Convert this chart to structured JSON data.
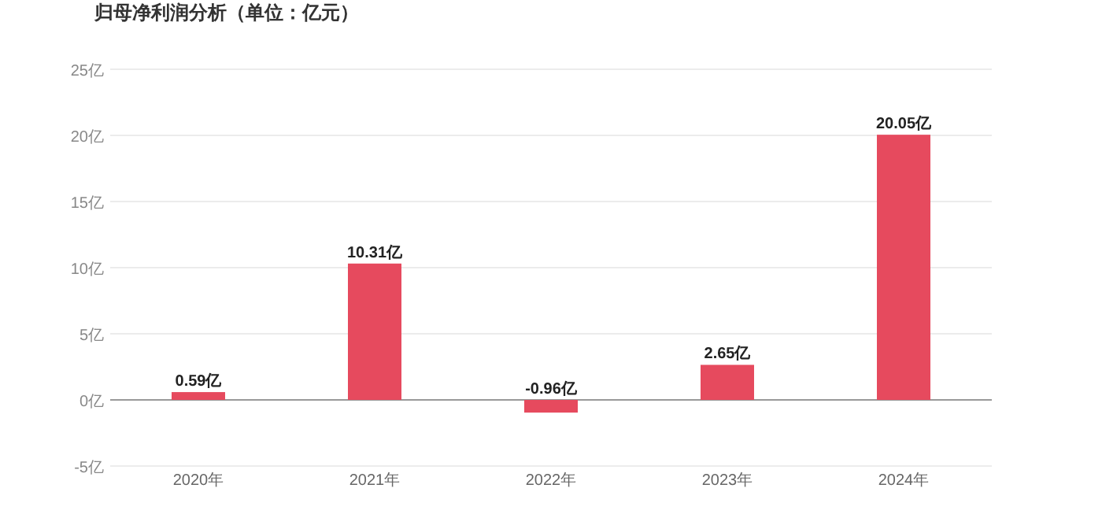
{
  "chart_data": {
    "type": "bar",
    "title": "归母净利润分析（单位：亿元）",
    "categories": [
      "2020年",
      "2021年",
      "2022年",
      "2023年",
      "2024年"
    ],
    "values": [
      0.59,
      10.31,
      -0.96,
      2.65,
      20.05
    ],
    "value_labels": [
      "0.59亿",
      "10.31亿",
      "-0.96亿",
      "2.65亿",
      "20.05亿"
    ],
    "color": "#e64a5e",
    "ylim": [
      -5,
      25
    ],
    "yticks": [
      {
        "value": -5,
        "label": "-5亿"
      },
      {
        "value": 0,
        "label": "0亿"
      },
      {
        "value": 5,
        "label": "5亿"
      },
      {
        "value": 10,
        "label": "10亿"
      },
      {
        "value": 15,
        "label": "15亿"
      },
      {
        "value": 20,
        "label": "20亿"
      },
      {
        "value": 25,
        "label": "25亿"
      }
    ],
    "grid": "y"
  }
}
